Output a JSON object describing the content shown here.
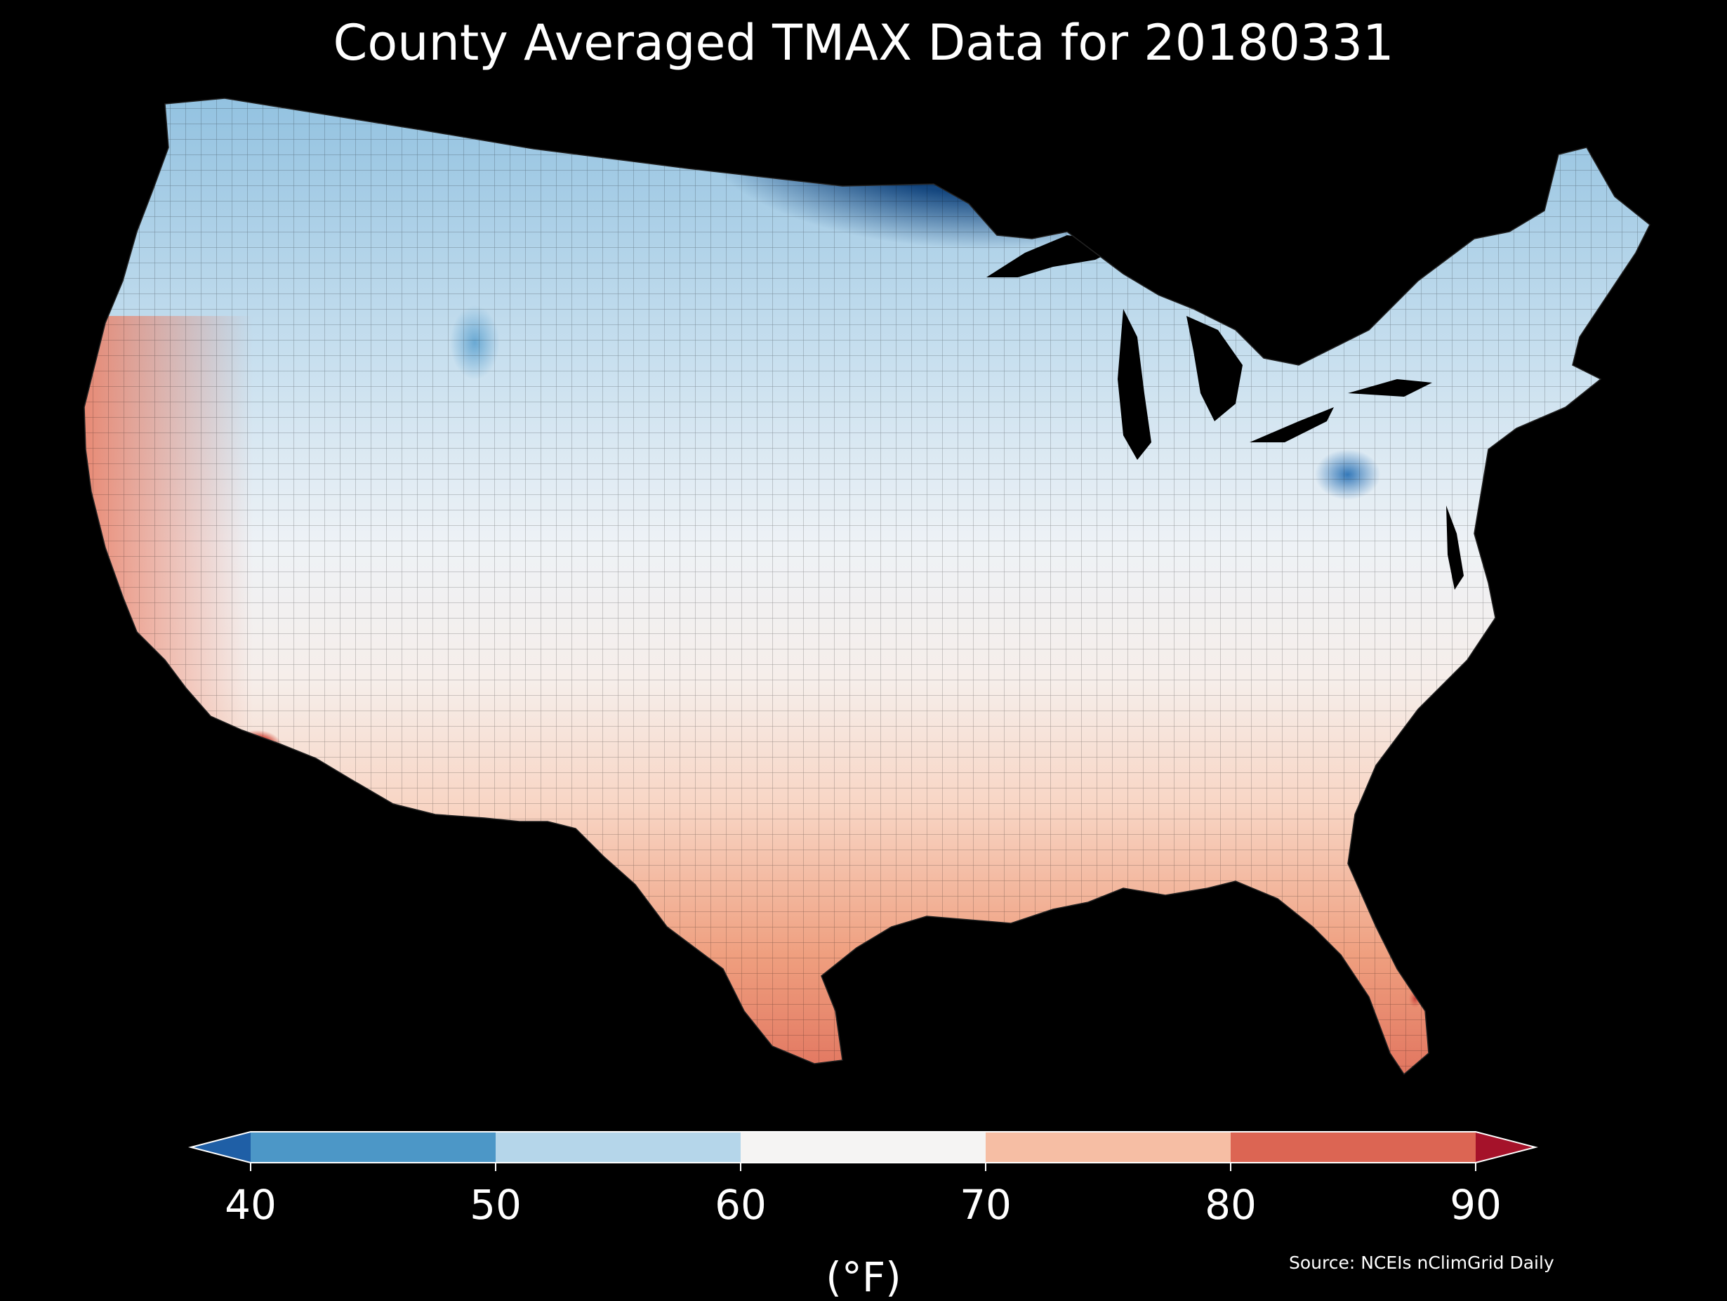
{
  "title": "County Averaged TMAX Data for 20180331",
  "colorbar": {
    "unit_label": "(°F)",
    "ticks": [
      "40",
      "50",
      "60",
      "70",
      "80",
      "90"
    ],
    "bins": [
      {
        "label": "<40",
        "color": "#1f5fa6"
      },
      {
        "label": "40-50",
        "color": "#4c97c7"
      },
      {
        "label": "50-60",
        "color": "#b5d6ea"
      },
      {
        "label": "60-70",
        "color": "#f5f4f3"
      },
      {
        "label": "70-80",
        "color": "#f6bea4"
      },
      {
        "label": "80-90",
        "color": "#dc6553"
      },
      {
        "label": ">90",
        "color": "#a5122a"
      }
    ]
  },
  "source": "Source: NCEIs nClimGrid Daily",
  "colors": {
    "background": "#000000",
    "very_cold": "#0b2f5c",
    "cold": "#2e73b4",
    "cool": "#8dbfdf",
    "mild": "#e4eef6",
    "neutral": "#f4f2f1",
    "warm": "#f9d3c1",
    "hot": "#ee9a79",
    "very_hot": "#d8604d",
    "extreme": "#a5142b"
  }
}
